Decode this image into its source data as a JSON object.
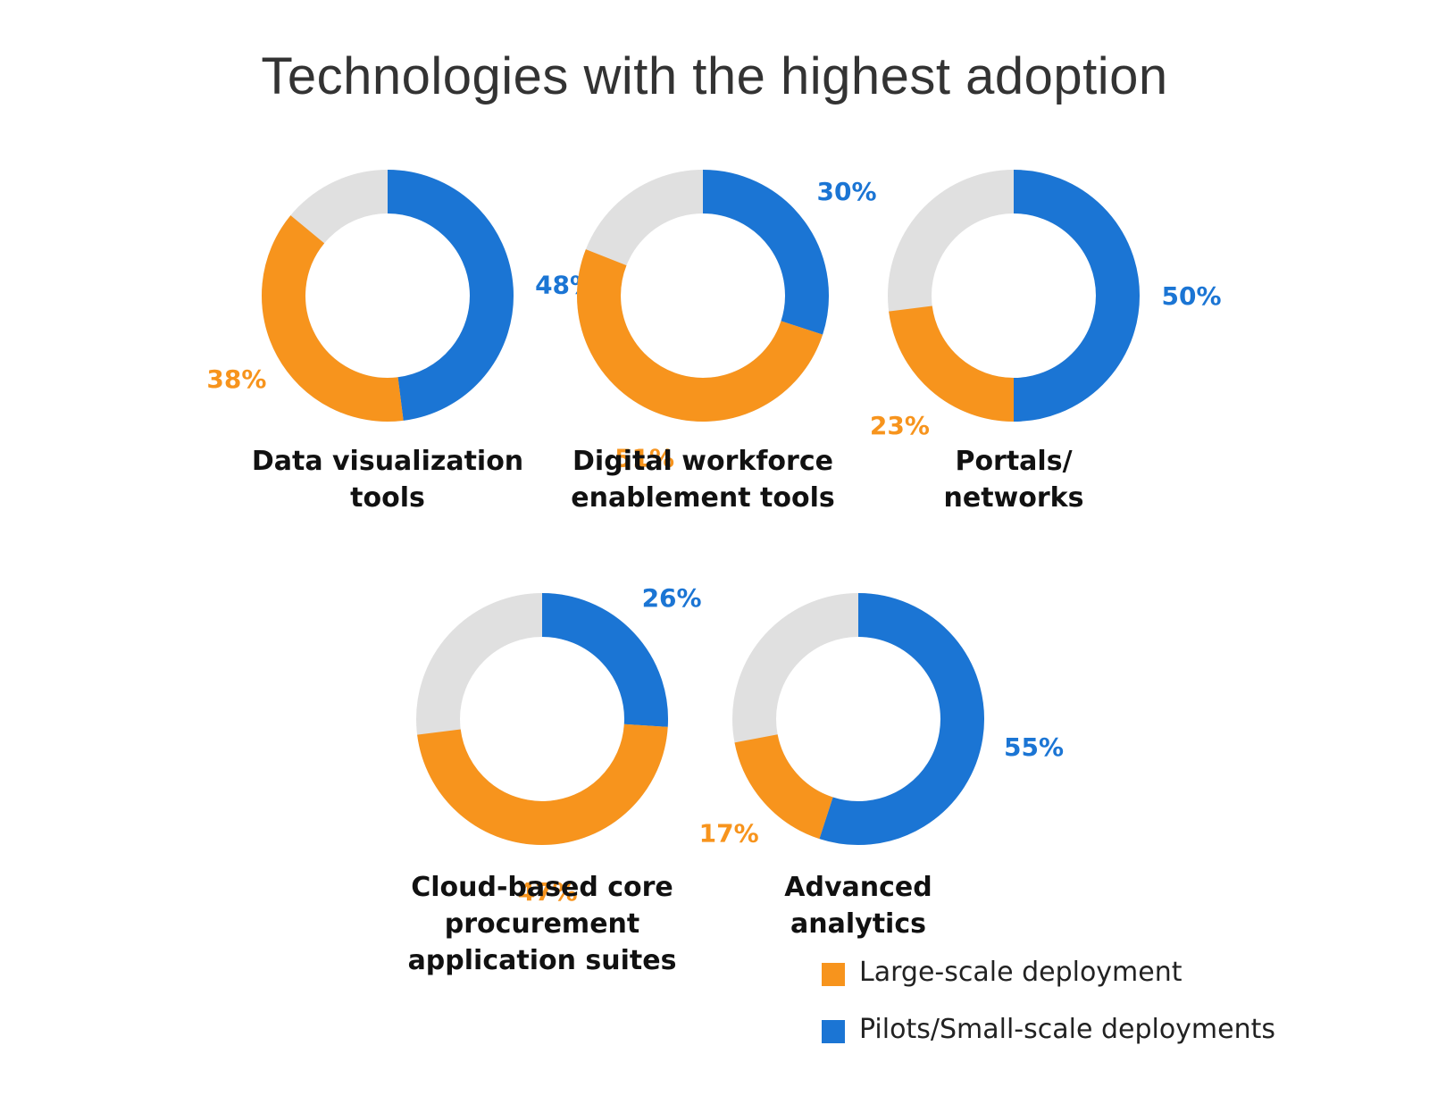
{
  "title": "Technologies with the highest adoption",
  "colors": {
    "large_scale": "#F7941D",
    "pilots": "#1B75D4",
    "remainder": "#E0E0E0"
  },
  "legend": {
    "large_scale_label": "Large-scale deployment",
    "pilots_label": "Pilots/Small-scale deployments"
  },
  "chart_data": {
    "type": "pie",
    "variant": "donut",
    "title": "Technologies with the highest adoption",
    "series": [
      {
        "name": "Large-scale deployment",
        "color": "#F7941D"
      },
      {
        "name": "Pilots/Small-scale deployments",
        "color": "#1B75D4"
      }
    ],
    "charts": [
      {
        "category": "Data visualization tools",
        "label_lines": [
          "Data visualization",
          "tools"
        ],
        "large_scale": 38,
        "pilots": 48,
        "large_scale_label": "38%",
        "pilots_label": "48%"
      },
      {
        "category": "Digital workforce enablement tools",
        "label_lines": [
          "Digital workforce",
          "enablement tools"
        ],
        "large_scale": 51,
        "pilots": 30,
        "large_scale_label": "51%",
        "pilots_label": "30%"
      },
      {
        "category": "Portals/ networks",
        "label_lines": [
          "Portals/",
          "networks"
        ],
        "large_scale": 23,
        "pilots": 50,
        "large_scale_label": "23%",
        "pilots_label": "50%"
      },
      {
        "category": "Cloud-based core procurement application suites",
        "label_lines": [
          "Cloud-based core",
          "procurement",
          "application suites"
        ],
        "large_scale": 47,
        "pilots": 26,
        "large_scale_label": "47%",
        "pilots_label": "26%"
      },
      {
        "category": "Advanced analytics",
        "label_lines": [
          "Advanced",
          "analytics"
        ],
        "large_scale": 17,
        "pilots": 55,
        "large_scale_label": "17%",
        "pilots_label": "55%"
      }
    ],
    "legend_position": "bottom-right"
  }
}
